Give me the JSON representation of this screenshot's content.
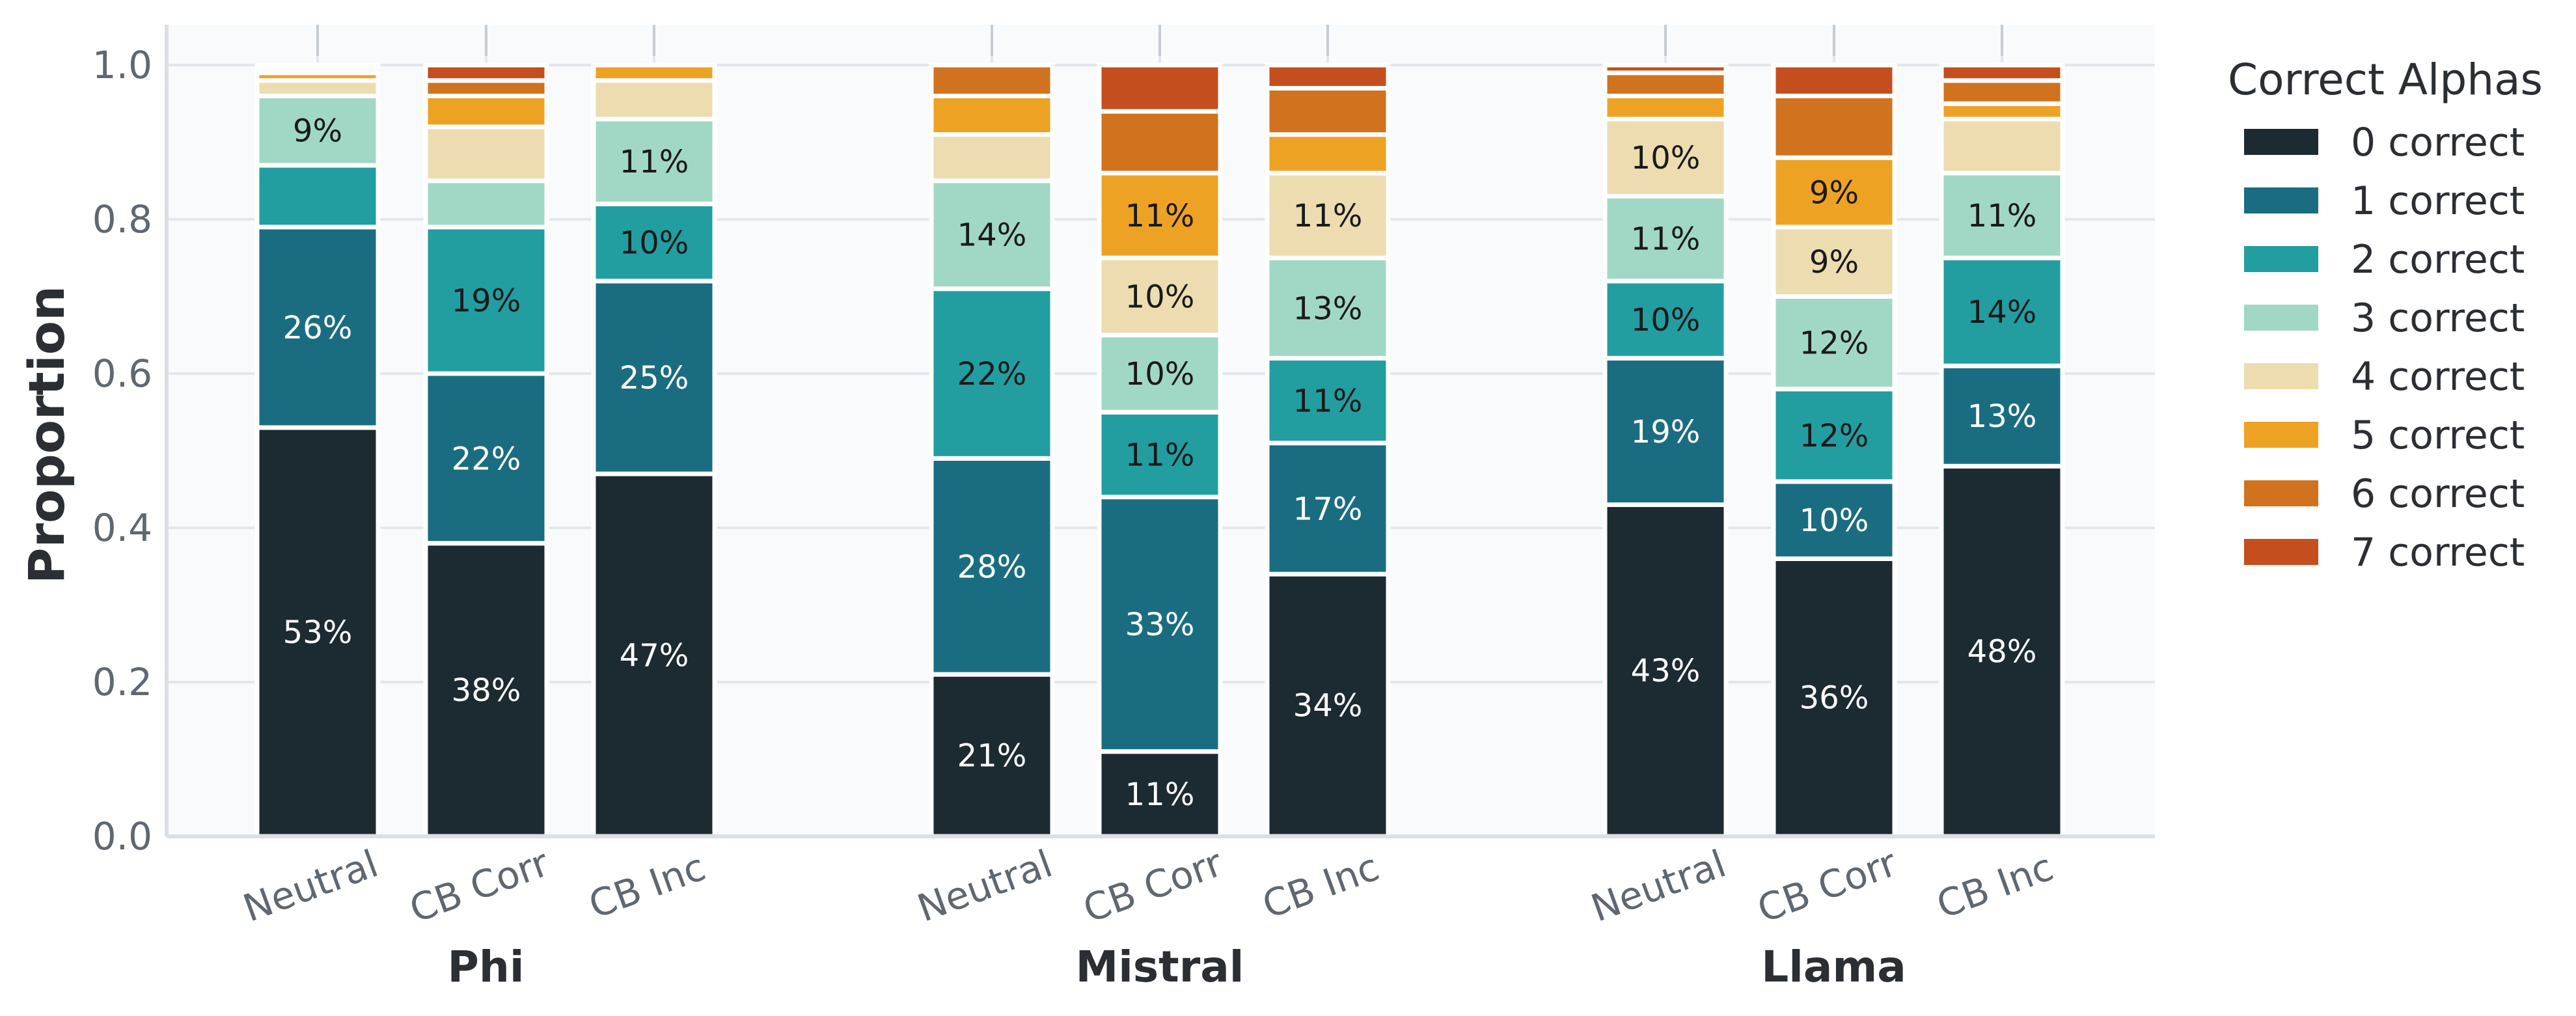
{
  "chart_data": {
    "type": "bar",
    "stacked": true,
    "ylabel": "Proportion",
    "ylim": [
      0,
      1.05
    ],
    "yticks": [
      "0.0",
      "0.2",
      "0.4",
      "0.6",
      "0.8",
      "1.0"
    ],
    "grid": true,
    "legend": {
      "title": "Correct Alphas",
      "placement": "right-top",
      "entries": [
        "0 correct",
        "1 correct",
        "2 correct",
        "3 correct",
        "4 correct",
        "5 correct",
        "6 correct",
        "7 correct"
      ]
    },
    "series_colors": [
      "#1c2a31",
      "#1a6d80",
      "#229ea1",
      "#a1d8c5",
      "#ecdcb0",
      "#eea224",
      "#d0721e",
      "#c44e1e"
    ],
    "groups": [
      {
        "name": "Phi",
        "bars": [
          {
            "label": "Neutral",
            "values": [
              0.53,
              0.26,
              0.08,
              0.09,
              0.02,
              0.01,
              0.005,
              0.005
            ],
            "labels": [
              "53%",
              "26%",
              "",
              "9%",
              "",
              "",
              "",
              ""
            ]
          },
          {
            "label": "CB Corr",
            "values": [
              0.38,
              0.22,
              0.19,
              0.06,
              0.07,
              0.04,
              0.02,
              0.02
            ],
            "labels": [
              "38%",
              "22%",
              "19%",
              "",
              "",
              "",
              "",
              ""
            ]
          },
          {
            "label": "CB Inc",
            "values": [
              0.47,
              0.25,
              0.1,
              0.11,
              0.05,
              0.02,
              0.0,
              0.0
            ],
            "labels": [
              "47%",
              "25%",
              "10%",
              "11%",
              "",
              "",
              "",
              ""
            ]
          }
        ]
      },
      {
        "name": "Mistral",
        "bars": [
          {
            "label": "Neutral",
            "values": [
              0.21,
              0.28,
              0.22,
              0.14,
              0.06,
              0.05,
              0.04,
              0.0
            ],
            "labels": [
              "21%",
              "28%",
              "22%",
              "14%",
              "",
              "",
              "",
              ""
            ]
          },
          {
            "label": "CB Corr",
            "values": [
              0.11,
              0.33,
              0.11,
              0.1,
              0.1,
              0.11,
              0.08,
              0.06
            ],
            "labels": [
              "11%",
              "33%",
              "11%",
              "10%",
              "10%",
              "11%",
              "",
              ""
            ]
          },
          {
            "label": "CB Inc",
            "values": [
              0.34,
              0.17,
              0.11,
              0.13,
              0.11,
              0.05,
              0.06,
              0.03
            ],
            "labels": [
              "34%",
              "17%",
              "11%",
              "13%",
              "11%",
              "",
              "",
              ""
            ]
          }
        ]
      },
      {
        "name": "Llama",
        "bars": [
          {
            "label": "Neutral",
            "values": [
              0.43,
              0.19,
              0.1,
              0.11,
              0.1,
              0.03,
              0.03,
              0.01
            ],
            "labels": [
              "43%",
              "19%",
              "10%",
              "11%",
              "10%",
              "",
              "",
              ""
            ]
          },
          {
            "label": "CB Corr",
            "values": [
              0.36,
              0.1,
              0.12,
              0.12,
              0.09,
              0.09,
              0.08,
              0.04
            ],
            "labels": [
              "36%",
              "10%",
              "12%",
              "12%",
              "9%",
              "9%",
              "",
              ""
            ]
          },
          {
            "label": "CB Inc",
            "values": [
              0.48,
              0.13,
              0.14,
              0.11,
              0.07,
              0.02,
              0.03,
              0.02
            ],
            "labels": [
              "48%",
              "13%",
              "14%",
              "11%",
              "",
              "",
              "",
              ""
            ]
          }
        ]
      }
    ]
  }
}
